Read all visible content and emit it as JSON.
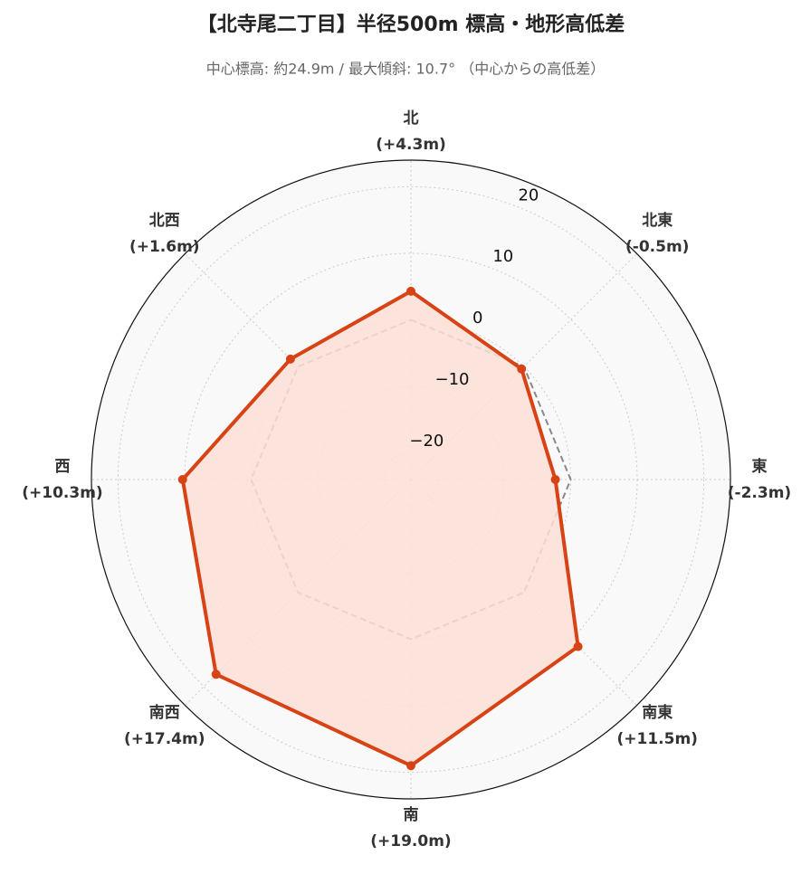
{
  "chart_data": {
    "type": "radar",
    "title": "【北寺尾二丁目】半径500m 標高・地形高低差",
    "subtitle": "中心標高: 約24.9m / 最大傾斜: 10.7° （中心からの高低差）",
    "categories": [
      "北",
      "北東",
      "東",
      "南東",
      "南",
      "南西",
      "西",
      "北西"
    ],
    "series": [
      {
        "color": "#d84315",
        "fill": "#fde0d8",
        "values": [
          4.3,
          -0.5,
          -2.3,
          11.5,
          19.0,
          17.4,
          10.3,
          1.6
        ],
        "value_labels": [
          "(+4.3m)",
          "(-0.5m)",
          "(-2.3m)",
          "(+11.5m)",
          "(+19.0m)",
          "(+17.4m)",
          "(+10.3m)",
          "(+1.6m)"
        ]
      },
      {
        "color": "#888888",
        "dash": true,
        "values": [
          0,
          0,
          0,
          0,
          0,
          0,
          0,
          0
        ]
      }
    ],
    "rlim": [
      -24,
      24
    ],
    "rticks": [
      {
        "value": -20,
        "label": "−20"
      },
      {
        "value": -10,
        "label": "−10"
      },
      0,
      10,
      20
    ],
    "grid": true
  }
}
